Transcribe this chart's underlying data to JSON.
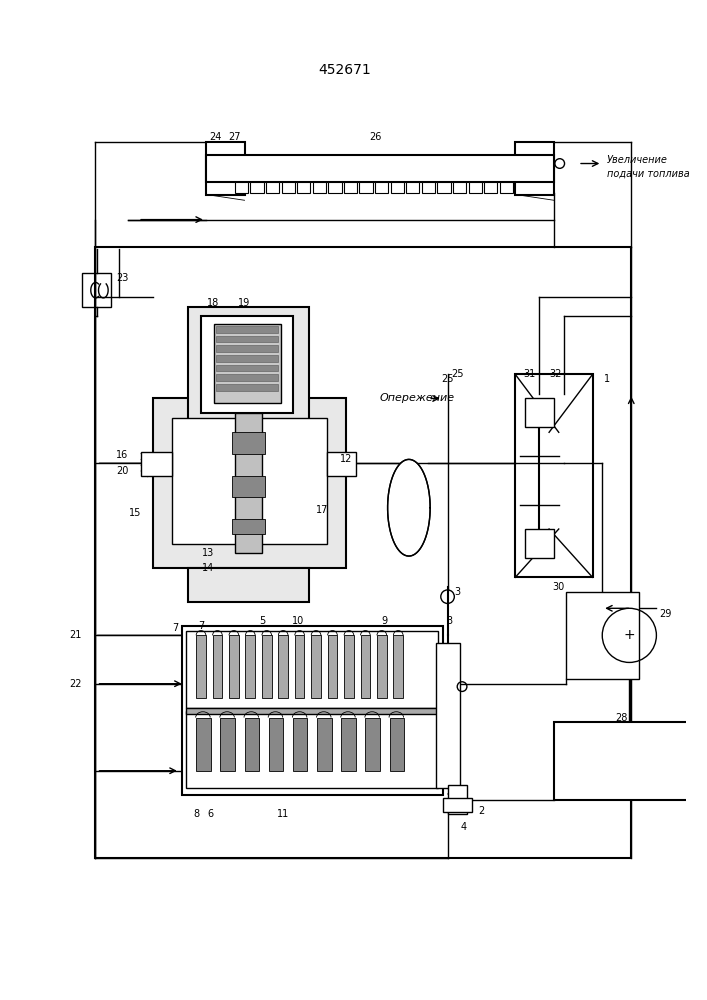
{
  "title": "452671",
  "bg_color": "#ffffff",
  "line_color": "#000000",
  "annotation_text": "Увеличение\nподачи топлива",
  "operezhenie_text": "Опережение"
}
